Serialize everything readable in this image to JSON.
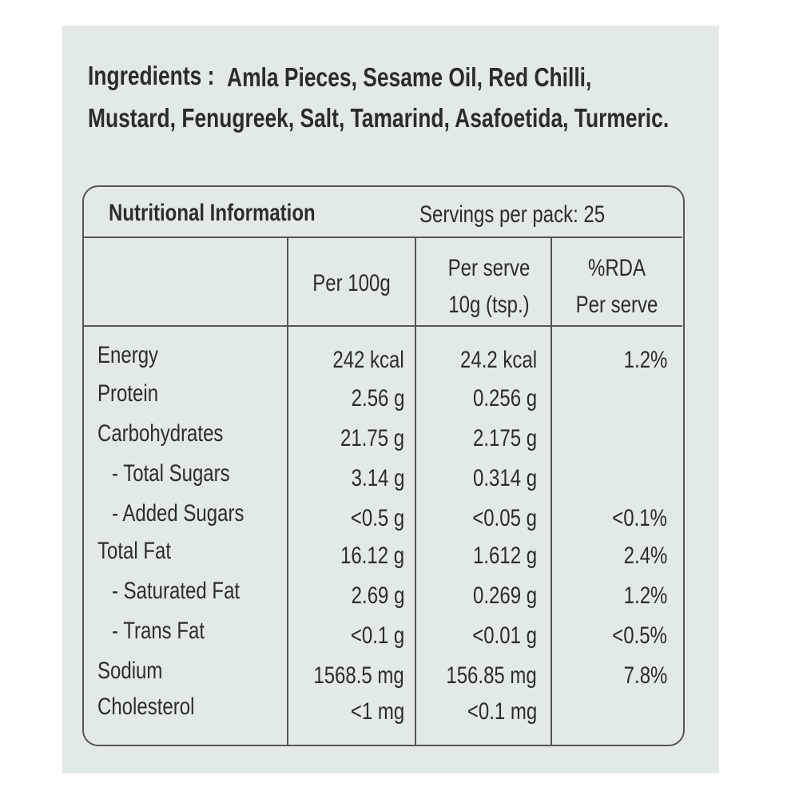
{
  "ingredients": {
    "label": "Ingredients :",
    "lines": [
      "Amla Pieces, Sesame Oil, Red Chilli,",
      "Mustard, Fenugreek, Salt, Tamarind, Asafoetida, Turmeric."
    ]
  },
  "table": {
    "title": "Nutritional Information",
    "servings": "Servings per pack: 25",
    "headers": [
      [
        "Per 100g"
      ],
      [
        "Per serve",
        "10g (tsp.)"
      ],
      [
        "%RDA",
        "Per serve"
      ]
    ],
    "rows": [
      {
        "name": "Energy",
        "indent": false,
        "cells": [
          "242 kcal",
          "24.2 kcal",
          "1.2%"
        ]
      },
      {
        "name": "Protein",
        "indent": false,
        "cells": [
          "2.56 g",
          "0.256 g",
          null
        ]
      },
      {
        "name": "Carbohydrates",
        "indent": false,
        "cells": [
          "21.75 g",
          "2.175 g",
          null
        ]
      },
      {
        "name": "- Total Sugars",
        "indent": true,
        "cells": [
          "3.14 g",
          "0.314 g",
          null
        ]
      },
      {
        "name": "- Added Sugars",
        "indent": true,
        "cells": [
          "<0.5 g",
          "<0.05 g",
          "<0.1%"
        ]
      },
      {
        "name": "Total Fat",
        "indent": false,
        "cells": [
          "16.12 g",
          "1.612 g",
          "2.4%"
        ]
      },
      {
        "name": "- Saturated Fat",
        "indent": true,
        "cells": [
          "2.69 g",
          "0.269 g",
          "1.2%"
        ]
      },
      {
        "name": "- Trans Fat",
        "indent": true,
        "cells": [
          "<0.1 g",
          "<0.01 g",
          "<0.5%"
        ]
      },
      {
        "name": "Sodium",
        "indent": false,
        "cells": [
          "1568.5 mg",
          "156.85 mg",
          "7.8%"
        ]
      },
      {
        "name": "Cholesterol",
        "indent": false,
        "cells": [
          "<1 mg",
          "<0.1 mg",
          null
        ]
      }
    ]
  }
}
